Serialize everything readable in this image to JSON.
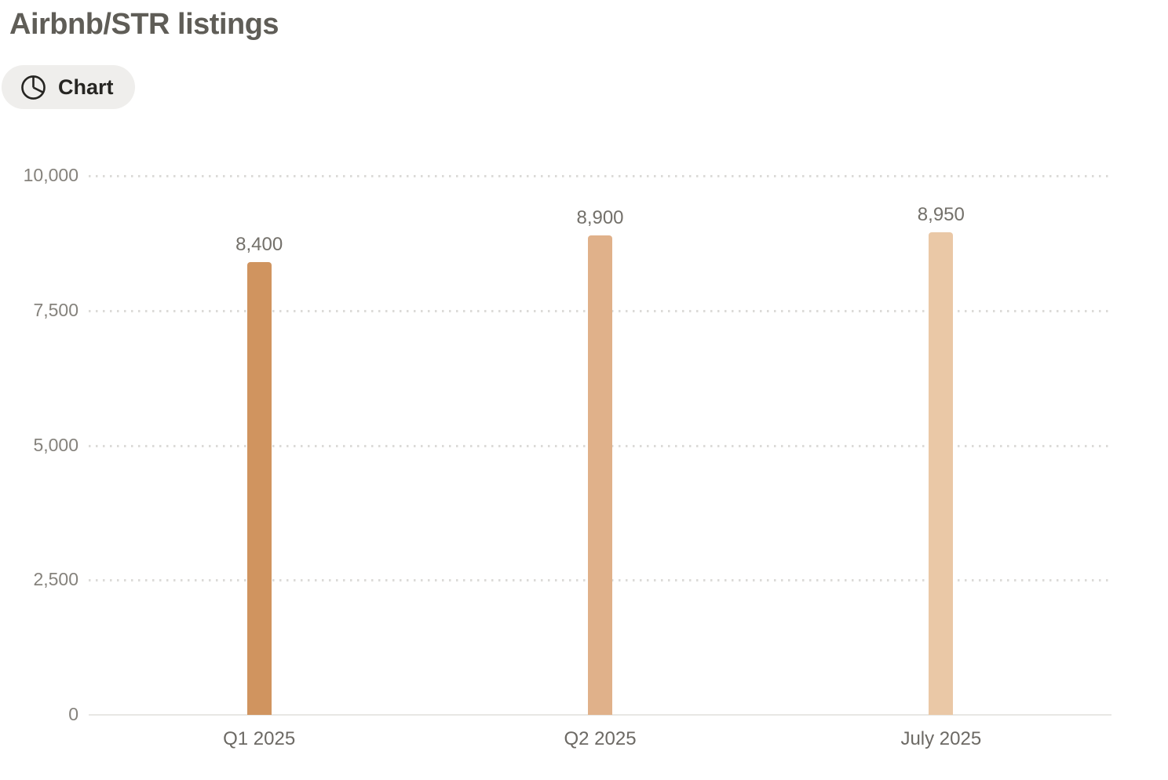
{
  "header": {
    "title": "Airbnb/STR listings",
    "chart_button_label": "Chart",
    "chart_button_icon": "pie-chart-icon"
  },
  "colors": {
    "title_text": "#5f5d57",
    "pill_background": "#efeeec",
    "pill_text": "#262522",
    "gridline": "#dcdbd8",
    "axis_baseline": "#e8e7e4",
    "ytick_text": "#85827c",
    "xtick_text": "#6c6964",
    "value_label_text": "#73706a"
  },
  "chart_data": {
    "type": "bar",
    "title": "Airbnb/STR listings",
    "categories": [
      "Q1 2025",
      "Q2 2025",
      "July 2025"
    ],
    "values": [
      8400,
      8900,
      8950
    ],
    "value_labels": [
      "8,400",
      "8,900",
      "8,950"
    ],
    "bar_colors": [
      "#d0945f",
      "#e0b18a",
      "#eac8a6"
    ],
    "xlabel": "",
    "ylabel": "",
    "ylim": [
      0,
      10000
    ],
    "yticks": [
      0,
      2500,
      5000,
      7500,
      10000
    ],
    "ytick_labels": [
      "0",
      "2,500",
      "5,000",
      "7,500",
      "10,000"
    ],
    "grid": "horizontal-dotted",
    "legend": "none"
  }
}
